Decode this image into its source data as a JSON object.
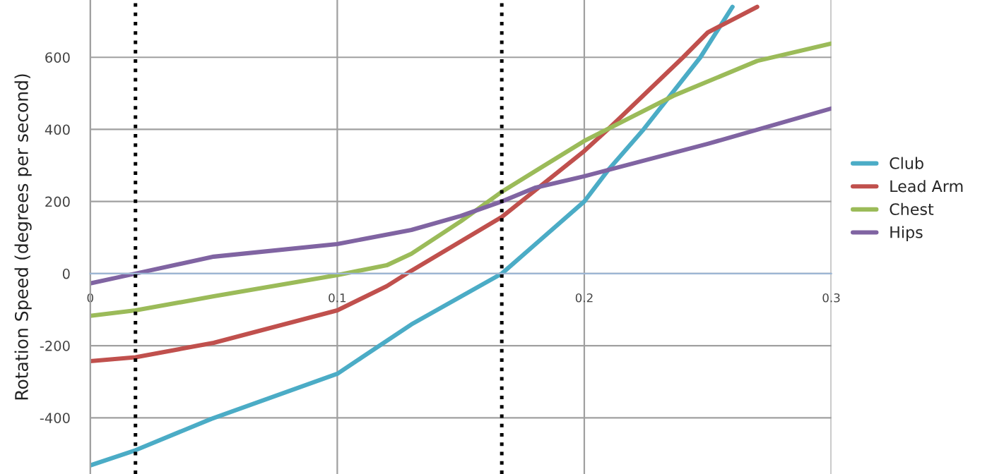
{
  "chart_data": {
    "type": "line",
    "ylabel": "Rotation Speed (degrees per second)",
    "xlim": [
      0,
      0.3
    ],
    "ylim": [
      -556,
      759
    ],
    "xticks": [
      0,
      0.1,
      0.2,
      0.3
    ],
    "yticks": [
      -400,
      -200,
      0,
      200,
      400,
      600
    ],
    "grid": true,
    "legend": "right",
    "marker": "none",
    "line_style": "solid",
    "series": [
      {
        "name": "Club",
        "color": "#4bacc6",
        "x": [
          0,
          0.0183,
          0.049,
          0.1,
          0.13,
          0.1666,
          0.2,
          0.21,
          0.224,
          0.247,
          0.26
        ],
        "values": [
          -532,
          -490,
          -403,
          -278,
          -141,
          0,
          200,
          290,
          400,
          600,
          740
        ]
      },
      {
        "name": "Lead Arm",
        "color": "#c0504d",
        "x": [
          0,
          0.0183,
          0.05,
          0.1,
          0.12,
          0.13,
          0.1666,
          0.2,
          0.21,
          0.24,
          0.25,
          0.27
        ],
        "values": [
          -243,
          -232,
          -192,
          -102,
          -35,
          8,
          157,
          340,
          403,
          600,
          669,
          740
        ]
      },
      {
        "name": "Chest",
        "color": "#9bbb59",
        "x": [
          0,
          0.0183,
          0.05,
          0.1,
          0.12,
          0.13,
          0.15,
          0.1666,
          0.2,
          0.236,
          0.27,
          0.3
        ],
        "values": [
          -117,
          -102,
          -63,
          -4,
          23,
          55,
          145,
          227,
          368,
          493,
          590,
          638
        ]
      },
      {
        "name": "Hips",
        "color": "#8064a2",
        "x": [
          0,
          0.0183,
          0.05,
          0.1,
          0.13,
          0.15,
          0.1666,
          0.18,
          0.2,
          0.25,
          0.3
        ],
        "values": [
          -27,
          0,
          47,
          82,
          121,
          160,
          200,
          238,
          270,
          360,
          458
        ]
      }
    ],
    "ref_lines": [
      {
        "axis": "x",
        "value": 0.0183,
        "color": "#000000",
        "line_style": "dotted"
      },
      {
        "axis": "x",
        "value": 0.1666,
        "color": "#000000",
        "line_style": "dotted"
      }
    ]
  }
}
